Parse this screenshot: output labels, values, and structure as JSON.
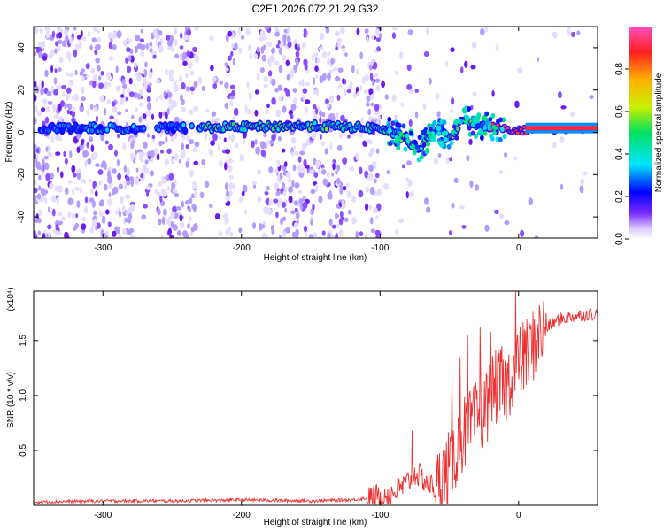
{
  "title": "C2E1.2026.072.21.29.G32",
  "chart_data": [
    {
      "type": "heatmap",
      "name": "spectrogram",
      "xlabel": "Height of straight line (km)",
      "ylabel": "Frequency (Hz)",
      "xlim": [
        -350,
        57
      ],
      "ylim": [
        -50,
        50
      ],
      "xticks": [
        -300,
        -200,
        -100,
        0
      ],
      "xtick_labels": [
        "-300",
        "-200",
        "-100",
        "0"
      ],
      "yticks": [
        -40,
        -20,
        0,
        20,
        40
      ],
      "ytick_labels": [
        "-40",
        "-20",
        "0",
        "20",
        "40"
      ],
      "colorbar": {
        "label": "Normalized spectral amplitude",
        "range": [
          0,
          1
        ],
        "ticks": [
          0.0,
          0.2,
          0.4,
          0.6,
          0.8
        ],
        "tick_labels": [
          "0.0",
          "0.2",
          "0.4",
          "0.6",
          "0.8"
        ],
        "colormap": [
          "#ffffff",
          "#d8c8ff",
          "#7a2cff",
          "#0000ff",
          "#00e5ff",
          "#00e060",
          "#c8f000",
          "#ffb000",
          "#ff2020",
          "#ff50c0"
        ]
      },
      "ridge": [
        {
          "x": -350,
          "freq": 2
        },
        {
          "x": -250,
          "freq": 2
        },
        {
          "x": -150,
          "freq": 3
        },
        {
          "x": -100,
          "freq": 2
        },
        {
          "x": -85,
          "freq": -2
        },
        {
          "x": -72,
          "freq": -8
        },
        {
          "x": -60,
          "freq": 2
        },
        {
          "x": -50,
          "freq": -3
        },
        {
          "x": -40,
          "freq": 6
        },
        {
          "x": -25,
          "freq": 3
        },
        {
          "x": -10,
          "freq": 2
        },
        {
          "x": 0,
          "freq": 1
        },
        {
          "x": 57,
          "freq": 2
        }
      ]
    },
    {
      "type": "line",
      "name": "snr",
      "xlabel": "Height of straight line (km)",
      "ylabel": "SNR (10 * v/v)",
      "y_multiplier": "(x10⁴)",
      "xlim": [
        -350,
        57
      ],
      "ylim": [
        0,
        1.95
      ],
      "xticks": [
        -300,
        -200,
        -100,
        0
      ],
      "xtick_labels": [
        "-300",
        "-200",
        "-100",
        "0"
      ],
      "yticks": [
        0.5,
        1.0,
        1.5
      ],
      "ytick_labels": [
        "0.5",
        "1.0",
        "1.5"
      ],
      "color": "#ee3030",
      "series": [
        {
          "name": "SNR",
          "x": [
            -350,
            -300,
            -250,
            -200,
            -150,
            -120,
            -100,
            -90,
            -80,
            -75,
            -70,
            -60,
            -50,
            -45,
            -40,
            -35,
            -30,
            -25,
            -20,
            -15,
            -10,
            -5,
            0,
            5,
            10,
            15,
            20,
            25,
            30,
            40,
            50,
            57
          ],
          "y": [
            0.03,
            0.04,
            0.04,
            0.05,
            0.04,
            0.05,
            0.08,
            0.12,
            0.2,
            0.3,
            0.25,
            0.15,
            0.35,
            0.5,
            0.65,
            0.7,
            0.8,
            0.85,
            1.0,
            1.1,
            1.05,
            1.2,
            1.3,
            1.35,
            1.45,
            1.55,
            1.62,
            1.66,
            1.7,
            1.72,
            1.74,
            1.74
          ]
        }
      ],
      "spikes": [
        {
          "x": -77,
          "y": 0.68
        },
        {
          "x": -48,
          "y": 1.18
        },
        {
          "x": -42,
          "y": 1.35
        },
        {
          "x": -37,
          "y": 1.55
        },
        {
          "x": -28,
          "y": 1.62
        },
        {
          "x": -20,
          "y": 1.58
        },
        {
          "x": -12,
          "y": 1.45
        },
        {
          "x": -2,
          "y": 1.95
        },
        {
          "x": 4,
          "y": 1.6
        },
        {
          "x": 12,
          "y": 1.55
        }
      ]
    }
  ]
}
